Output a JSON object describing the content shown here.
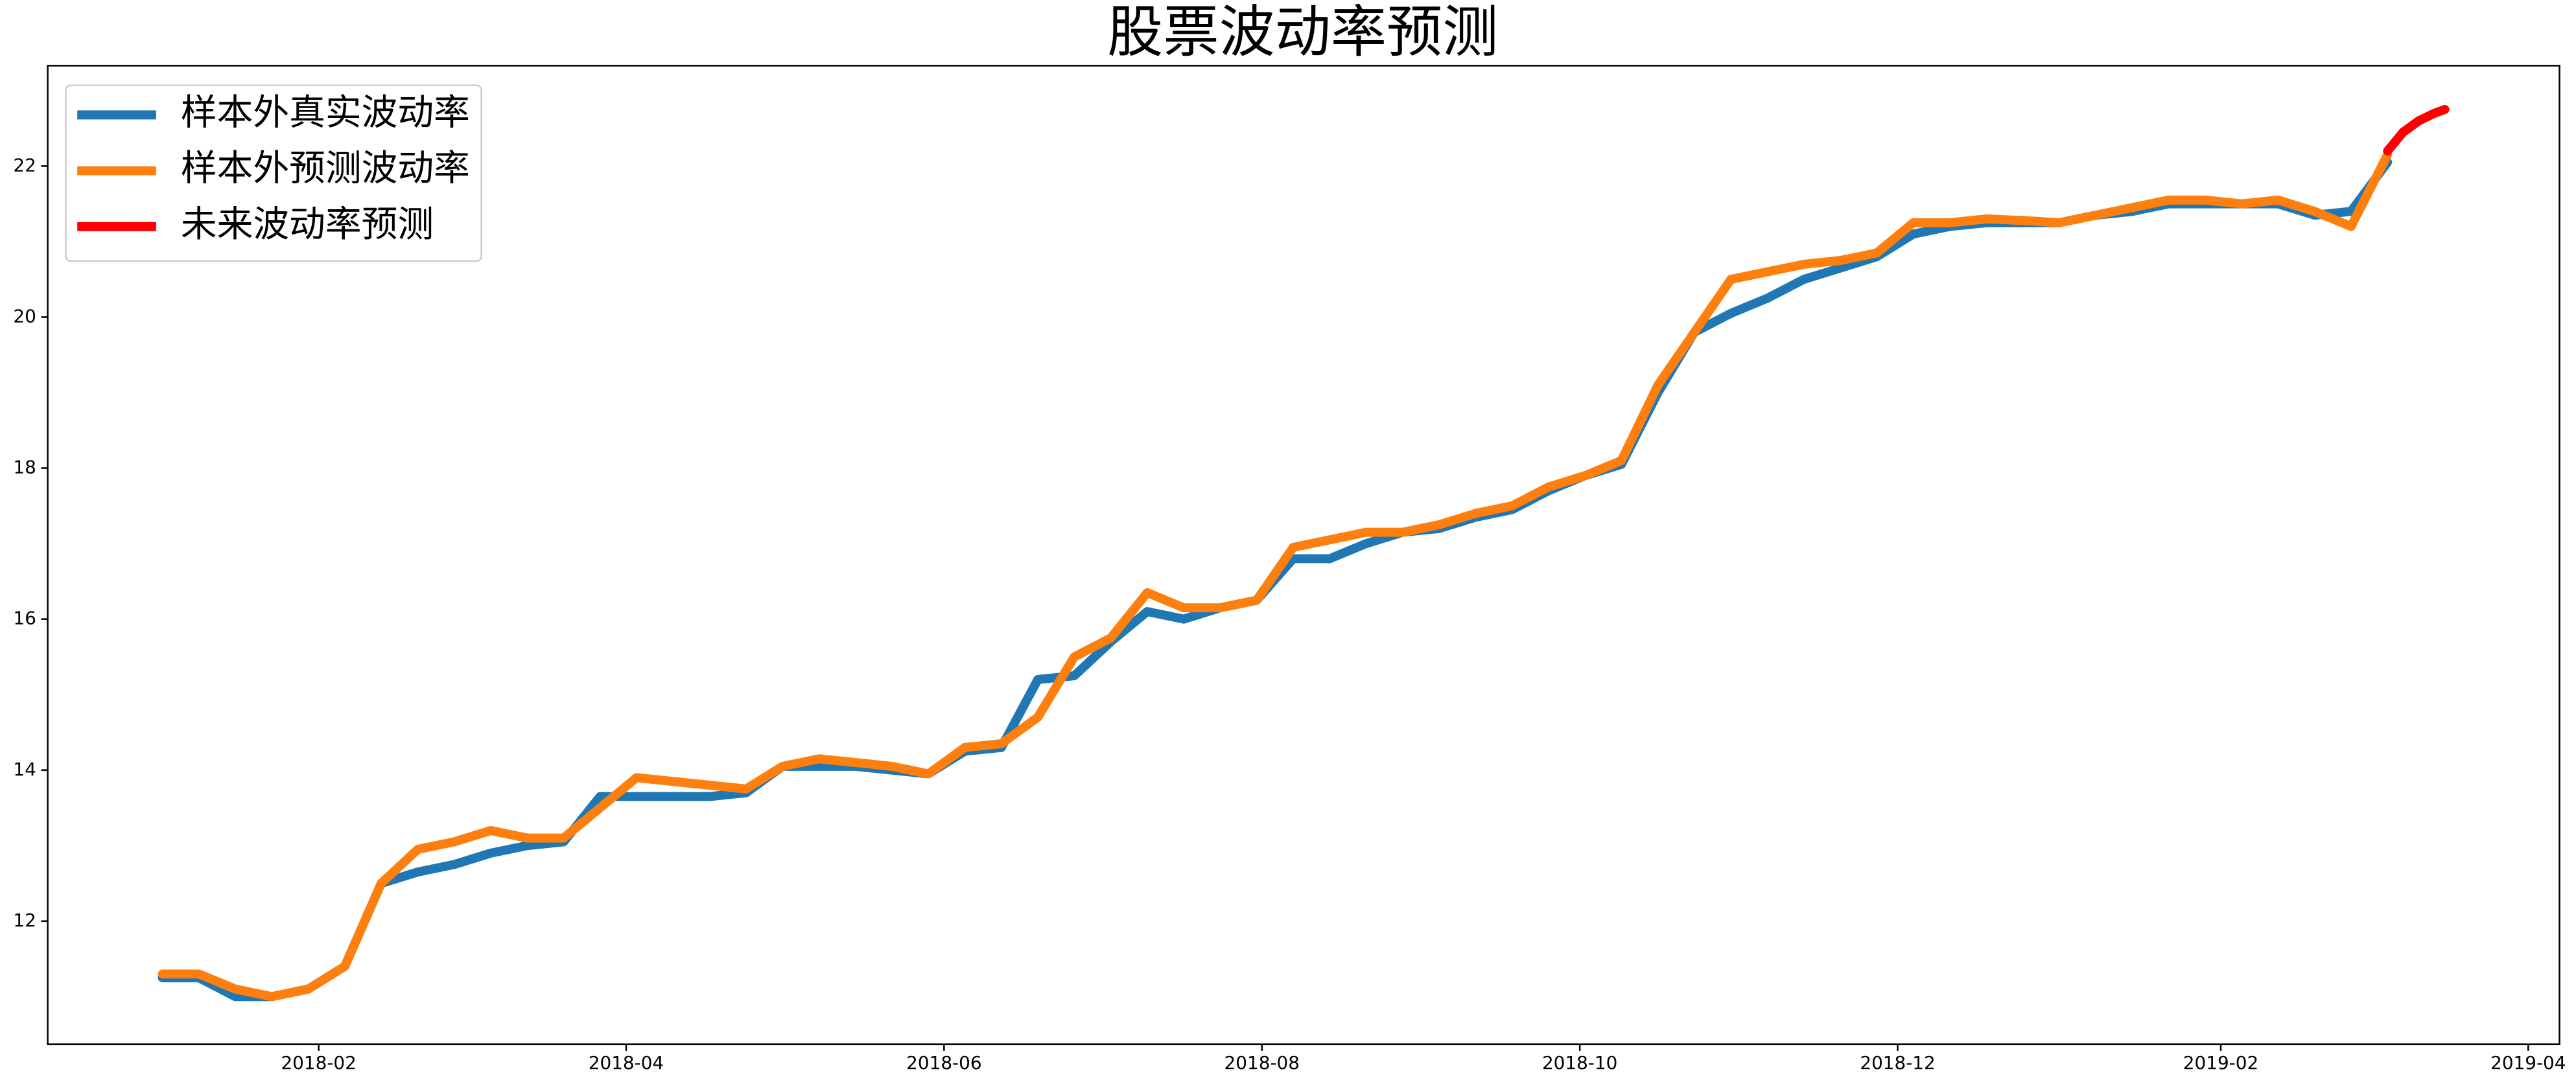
{
  "chart_data": {
    "type": "line",
    "title": "股票波动率预测",
    "x": [
      "2018-01-02",
      "2018-01-09",
      "2018-01-16",
      "2018-01-23",
      "2018-01-30",
      "2018-02-06",
      "2018-02-13",
      "2018-02-20",
      "2018-02-27",
      "2018-03-06",
      "2018-03-13",
      "2018-03-20",
      "2018-03-27",
      "2018-04-03",
      "2018-04-10",
      "2018-04-17",
      "2018-04-24",
      "2018-05-01",
      "2018-05-08",
      "2018-05-15",
      "2018-05-22",
      "2018-05-29",
      "2018-06-05",
      "2018-06-12",
      "2018-06-19",
      "2018-06-26",
      "2018-07-03",
      "2018-07-10",
      "2018-07-17",
      "2018-07-24",
      "2018-07-31",
      "2018-08-07",
      "2018-08-14",
      "2018-08-21",
      "2018-08-28",
      "2018-09-04",
      "2018-09-11",
      "2018-09-18",
      "2018-09-25",
      "2018-10-02",
      "2018-10-09",
      "2018-10-16",
      "2018-10-23",
      "2018-10-30",
      "2018-11-06",
      "2018-11-13",
      "2018-11-20",
      "2018-11-27",
      "2018-12-04",
      "2018-12-11",
      "2018-12-18",
      "2018-12-25",
      "2019-01-01",
      "2019-01-08",
      "2019-01-15",
      "2019-01-22",
      "2019-01-29",
      "2019-02-05",
      "2019-02-12",
      "2019-02-19",
      "2019-02-26",
      "2019-03-05"
    ],
    "series": [
      {
        "name": "样本外真实波动率",
        "color": "#1f77b4",
        "values": [
          11.25,
          11.25,
          11.0,
          11.0,
          11.1,
          11.4,
          12.5,
          12.65,
          12.75,
          12.9,
          13.0,
          13.05,
          13.65,
          13.65,
          13.65,
          13.65,
          13.7,
          14.05,
          14.05,
          14.05,
          14.0,
          13.95,
          14.25,
          14.3,
          15.2,
          15.25,
          15.7,
          16.1,
          16.0,
          16.15,
          16.25,
          16.8,
          16.8,
          17.0,
          17.15,
          17.2,
          17.35,
          17.45,
          17.7,
          17.9,
          18.05,
          19.0,
          19.8,
          20.05,
          20.25,
          20.5,
          20.65,
          20.8,
          21.1,
          21.2,
          21.25,
          21.25,
          21.25,
          21.35,
          21.4,
          21.5,
          21.5,
          21.5,
          21.5,
          21.35,
          21.4,
          22.05
        ]
      },
      {
        "name": "样本外预测波动率",
        "color": "#ff7f0e",
        "values": [
          11.3,
          11.3,
          11.1,
          11.0,
          11.1,
          11.4,
          12.5,
          12.95,
          13.05,
          13.2,
          13.1,
          13.1,
          13.5,
          13.9,
          13.85,
          13.8,
          13.75,
          14.05,
          14.15,
          14.1,
          14.05,
          13.95,
          14.3,
          14.35,
          14.7,
          15.5,
          15.75,
          16.35,
          16.15,
          16.15,
          16.25,
          16.95,
          17.05,
          17.15,
          17.15,
          17.25,
          17.4,
          17.5,
          17.75,
          17.9,
          18.1,
          19.1,
          19.8,
          20.5,
          20.6,
          20.7,
          20.75,
          20.85,
          21.25,
          21.25,
          21.3,
          21.28,
          21.25,
          21.35,
          21.45,
          21.55,
          21.55,
          21.5,
          21.55,
          21.4,
          21.2,
          22.15
        ]
      },
      {
        "name": "未来波动率预测",
        "color": "#ff0000",
        "x": [
          "2019-03-05",
          "2019-03-08",
          "2019-03-11",
          "2019-03-14",
          "2019-03-16"
        ],
        "values": [
          22.2,
          22.45,
          22.6,
          22.7,
          22.75
        ]
      }
    ],
    "xlim": [
      "2017-12-11",
      "2019-04-07"
    ],
    "xticks": [
      {
        "value": "2018-02-01",
        "label": "2018-02"
      },
      {
        "value": "2018-04-01",
        "label": "2018-04"
      },
      {
        "value": "2018-06-01",
        "label": "2018-06"
      },
      {
        "value": "2018-08-01",
        "label": "2018-08"
      },
      {
        "value": "2018-10-01",
        "label": "2018-10"
      },
      {
        "value": "2018-12-01",
        "label": "2018-12"
      },
      {
        "value": "2019-02-01",
        "label": "2019-02"
      },
      {
        "value": "2019-04-01",
        "label": "2019-04"
      }
    ],
    "ylim": [
      10.37,
      23.33
    ],
    "yticks": [
      12,
      14,
      16,
      18,
      20,
      22
    ],
    "legend": "upper left"
  }
}
